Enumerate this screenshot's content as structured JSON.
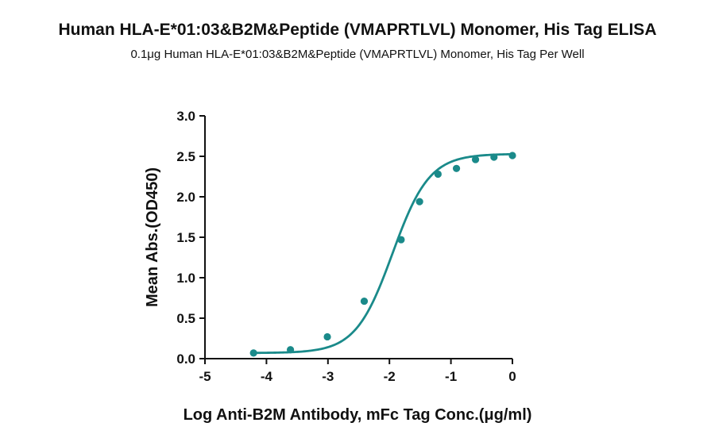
{
  "chart_data": {
    "type": "scatter",
    "title": "Human HLA-E*01:03&B2M&Peptide (VMAPRTLVL) Monomer, His Tag ELISA",
    "subtitle": "0.1μg Human HLA-E*01:03&B2M&Peptide (VMAPRTLVL) Monomer, His Tag Per Well",
    "xlabel": "Log  Anti-B2M Antibody, mFc Tag Conc.(μg/ml)",
    "ylabel": "Mean Abs.(OD450)",
    "xlim": [
      -5,
      0
    ],
    "ylim": [
      0,
      3.0
    ],
    "x_ticks": [
      "-5",
      "-4",
      "-3",
      "-2",
      "-1",
      "0"
    ],
    "y_ticks": [
      "0.0",
      "0.5",
      "1.0",
      "1.5",
      "2.0",
      "2.5",
      "3.0"
    ],
    "grid": false,
    "color": "#1a8a8a",
    "series": [
      {
        "x": [
          -4.21,
          -3.61,
          -3.01,
          -2.41,
          -1.81,
          -1.51,
          -1.21,
          -0.91,
          -0.6,
          -0.3,
          0.0
        ],
        "y": [
          0.07,
          0.11,
          0.27,
          0.71,
          1.47,
          1.94,
          2.28,
          2.35,
          2.46,
          2.49,
          2.51
        ],
        "fit": "4PL sigmoid"
      }
    ]
  }
}
